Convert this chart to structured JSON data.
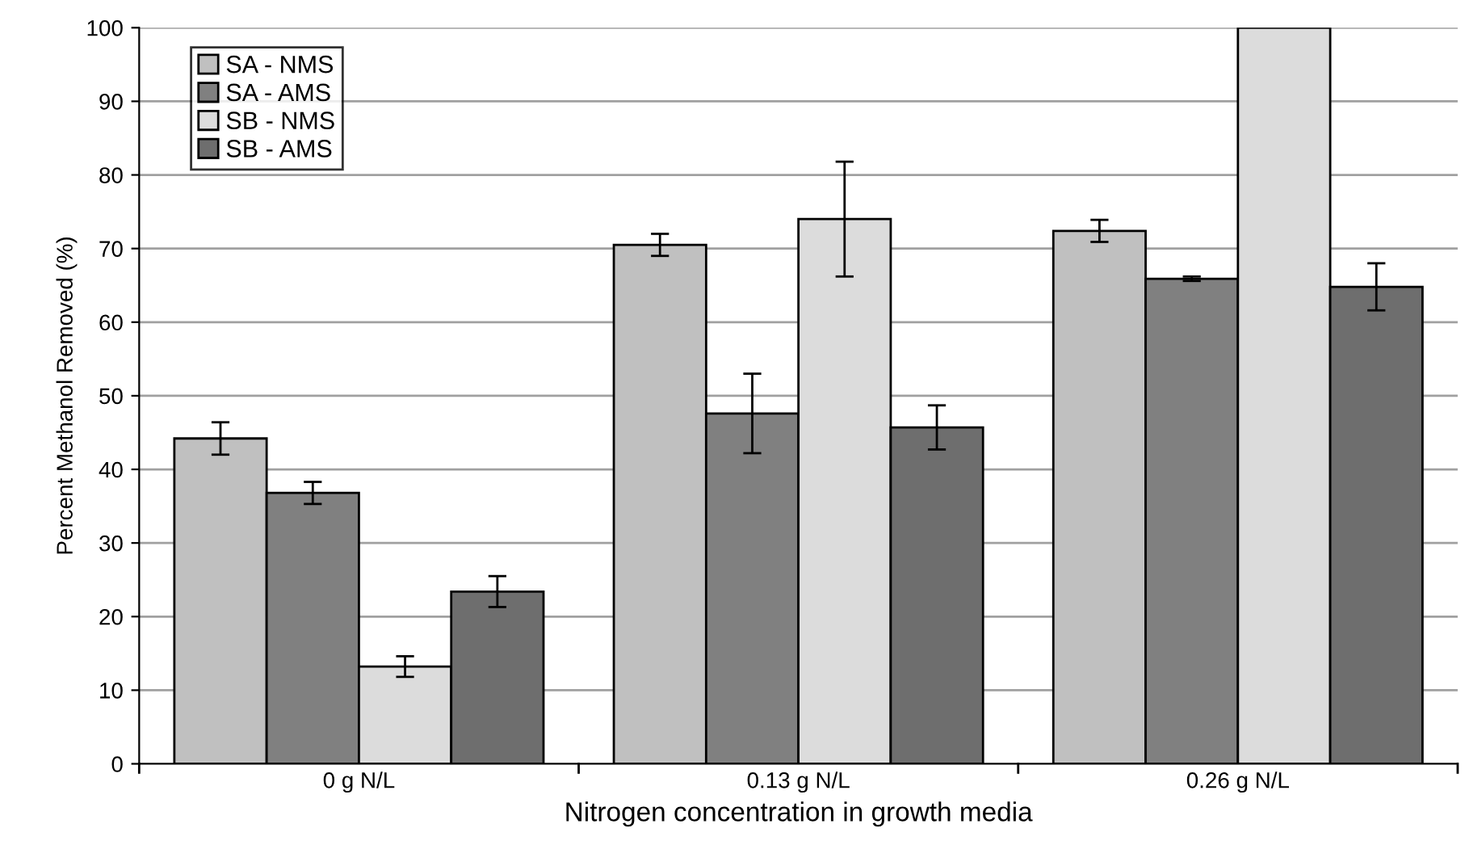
{
  "chart_data": {
    "type": "bar",
    "xlabel": "Nitrogen concentration in growth media",
    "ylabel": "Percent Methanol Removed (%)",
    "categories": [
      "0 g N/L",
      "0.13 g N/L",
      "0.26 g N/L"
    ],
    "series": [
      {
        "name": "SA - NMS",
        "color": "#c0c0c0",
        "values": [
          44.2,
          70.5,
          72.4
        ],
        "errors": [
          2.2,
          1.5,
          1.5
        ]
      },
      {
        "name": "SA - AMS",
        "color": "#808080",
        "values": [
          36.8,
          47.6,
          65.9
        ],
        "errors": [
          1.5,
          5.4,
          0.3
        ]
      },
      {
        "name": "SB - NMS",
        "color": "#dcdcdc",
        "values": [
          13.2,
          74.0,
          100
        ],
        "errors": [
          1.4,
          7.8,
          null
        ]
      },
      {
        "name": "SB - AMS",
        "color": "#6e6e6e",
        "values": [
          23.4,
          45.7,
          64.8
        ],
        "errors": [
          2.1,
          3.0,
          3.2
        ]
      }
    ],
    "ylim": [
      0,
      100
    ],
    "yticks": [
      0,
      10,
      20,
      30,
      40,
      50,
      60,
      70,
      80,
      90,
      100
    ],
    "grid": "y",
    "legend": "top left"
  }
}
